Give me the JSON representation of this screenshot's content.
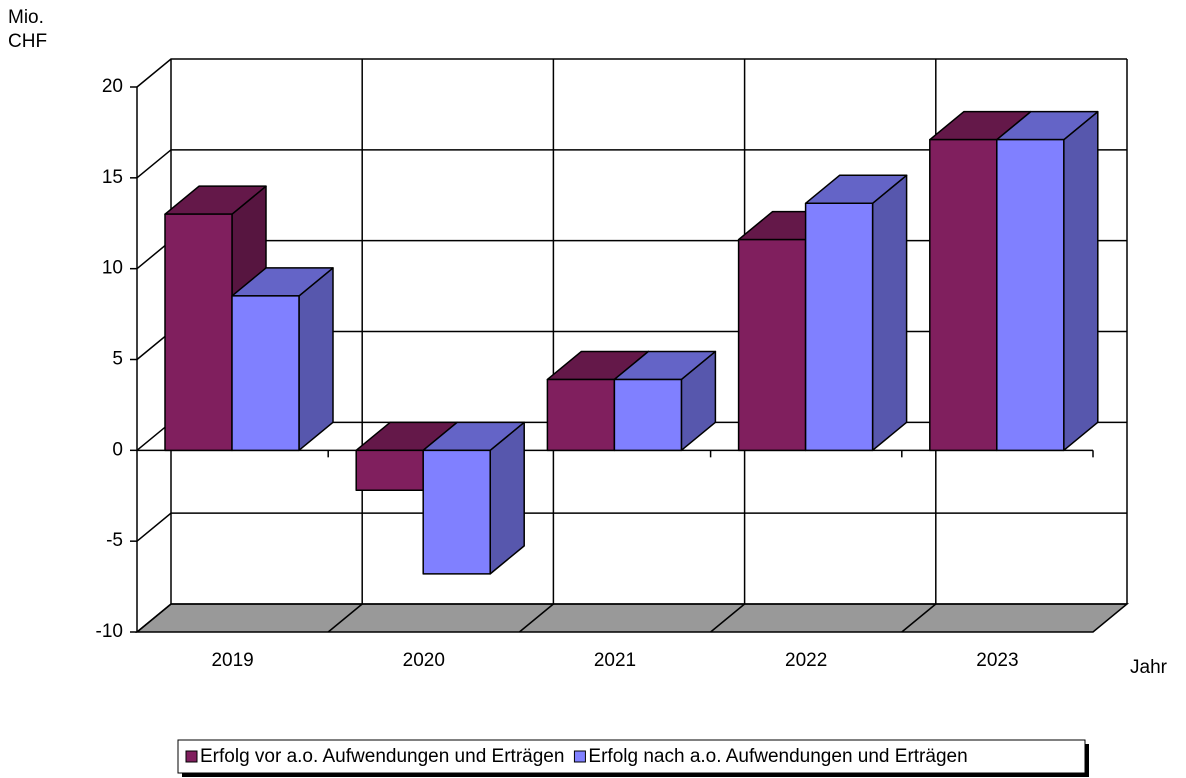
{
  "chart_data": {
    "type": "bar3d",
    "y_label_lines": [
      "Mio.",
      "CHF"
    ],
    "x_label": "Jahr",
    "categories": [
      "2019",
      "2020",
      "2021",
      "2022",
      "2023"
    ],
    "series": [
      {
        "name": "Erfolg vor a.o. Aufwendungen und Erträgen",
        "color": "#801f5e",
        "values": [
          13,
          -2.2,
          3.9,
          11.6,
          17.1
        ]
      },
      {
        "name": "Erfolg nach a.o. Aufwendungen und Erträgen",
        "color": "#8080ff",
        "values": [
          8.5,
          -6.8,
          3.9,
          13.6,
          17.1
        ]
      }
    ],
    "ylim": [
      -10,
      20
    ],
    "yticks": [
      -10,
      -5,
      0,
      5,
      10,
      15,
      20
    ],
    "negative_tick_color": "#ff0000",
    "grid": true,
    "legend": "bottom"
  }
}
